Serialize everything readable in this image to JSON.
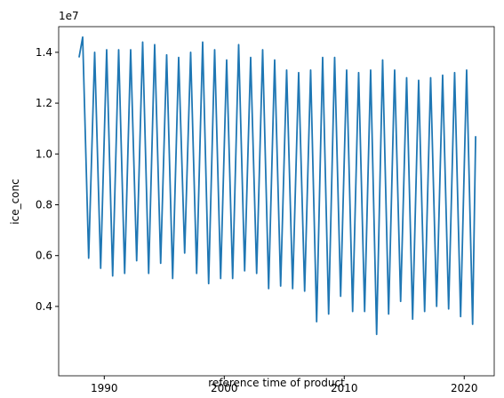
{
  "chart_data": {
    "type": "line",
    "x_label": "reference time of product",
    "y_label": "ice_conc",
    "y_offset_label": "1e7",
    "xlim": [
      1986.2,
      2022.5
    ],
    "ylim": [
      0.127,
      1.501
    ],
    "xticks": [
      1990,
      2000,
      2010,
      2020
    ],
    "yticks": [
      0.4,
      0.6,
      0.8,
      {
        "value": 1.0,
        "label": "1.0"
      },
      1.2,
      1.4
    ],
    "grid": false,
    "series": [
      {
        "name": "ice_conc",
        "color": "#1f77b4",
        "x": [
          1987.9,
          1988.2,
          1988.7,
          1989.2,
          1989.7,
          1990.2,
          1990.7,
          1991.2,
          1991.7,
          1992.2,
          1992.7,
          1993.2,
          1993.7,
          1994.2,
          1994.7,
          1995.2,
          1995.7,
          1996.2,
          1996.7,
          1997.2,
          1997.7,
          1998.2,
          1998.7,
          1999.2,
          1999.7,
          2000.2,
          2000.7,
          2001.2,
          2001.7,
          2002.2,
          2002.7,
          2003.2,
          2003.7,
          2004.2,
          2004.7,
          2005.2,
          2005.7,
          2006.2,
          2006.7,
          2007.2,
          2007.7,
          2008.2,
          2008.7,
          2009.2,
          2009.7,
          2010.2,
          2010.7,
          2011.2,
          2011.7,
          2012.2,
          2012.7,
          2013.2,
          2013.7,
          2014.2,
          2014.7,
          2015.2,
          2015.7,
          2016.2,
          2016.7,
          2017.2,
          2017.7,
          2018.2,
          2018.7,
          2019.2,
          2019.7,
          2020.2,
          2020.7,
          2020.95
        ],
        "values": [
          1.38,
          1.46,
          0.59,
          1.4,
          0.55,
          1.41,
          0.52,
          1.41,
          0.53,
          1.41,
          0.58,
          1.44,
          0.53,
          1.43,
          0.57,
          1.39,
          0.51,
          1.38,
          0.61,
          1.4,
          0.53,
          1.44,
          0.49,
          1.41,
          0.51,
          1.37,
          0.51,
          1.43,
          0.54,
          1.38,
          0.53,
          1.41,
          0.47,
          1.37,
          0.48,
          1.33,
          0.47,
          1.32,
          0.46,
          1.33,
          0.34,
          1.38,
          0.37,
          1.38,
          0.44,
          1.33,
          0.38,
          1.32,
          0.38,
          1.33,
          0.29,
          1.37,
          0.37,
          1.33,
          0.42,
          1.3,
          0.35,
          1.29,
          0.38,
          1.3,
          0.4,
          1.31,
          0.39,
          1.32,
          0.36,
          1.33,
          0.33,
          1.07
        ]
      }
    ]
  }
}
